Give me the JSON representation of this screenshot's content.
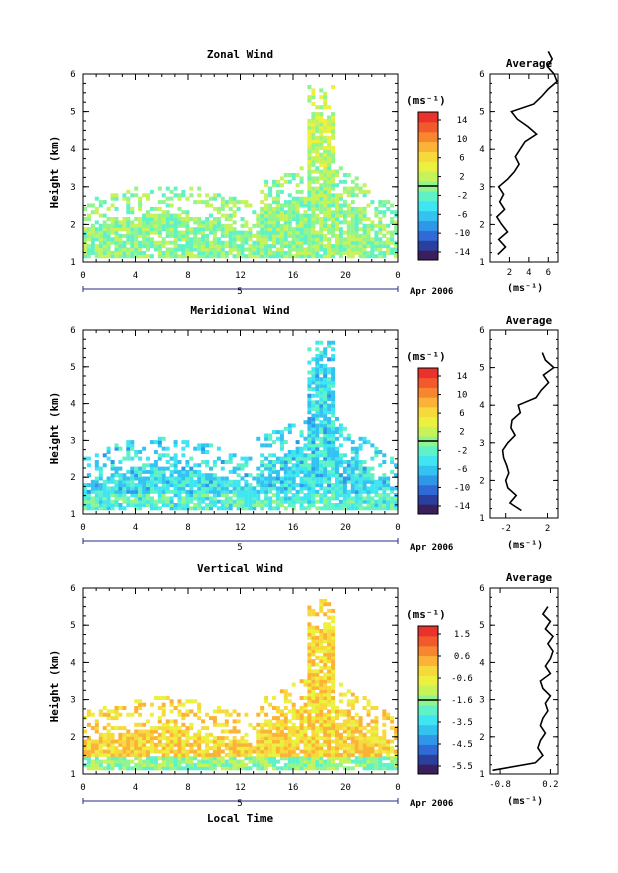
{
  "colors": {
    "scale": [
      "#3b1f5c",
      "#2a3f9e",
      "#2f6ad6",
      "#2f97e8",
      "#34c3f0",
      "#3fe6f2",
      "#5ff2c6",
      "#8ff58c",
      "#c6f25a",
      "#ecf03e",
      "#f8d93b",
      "#fbb237",
      "#f8862f",
      "#f25a2d",
      "#e8322b"
    ],
    "line": "#000000"
  },
  "x_ticks": [
    "0",
    "4",
    "8",
    "12",
    "16",
    "20",
    "0"
  ],
  "date_label": "Apr 2006",
  "day_label": "5",
  "xlabel": "Local Time",
  "units": "(ms⁻¹)",
  "chart_data": [
    {
      "type": "heatmap",
      "title": "Zonal Wind",
      "ylabel": "Height (km)",
      "y_ticks": [
        "1",
        "2",
        "3",
        "4",
        "5",
        "6"
      ],
      "ylim": [
        1,
        6
      ],
      "xlim": [
        0,
        24
      ],
      "colorbar_ticks": [
        "14",
        "10",
        "6",
        "2",
        "-2",
        "-6",
        "-10",
        "-14"
      ],
      "colorbar_range": [
        -16,
        16
      ],
      "average": {
        "title": "Average",
        "xticks": [
          "2",
          "4",
          "6"
        ],
        "xlim": [
          0,
          7
        ],
        "height": [
          1.2,
          1.4,
          1.6,
          1.8,
          2.0,
          2.2,
          2.4,
          2.6,
          2.8,
          3.0,
          3.2,
          3.4,
          3.6,
          3.8,
          4.0,
          4.2,
          4.4,
          4.6,
          4.8,
          5.0,
          5.2,
          5.4,
          5.6,
          5.8,
          6.0,
          6.2,
          6.4,
          6.6
        ],
        "value": [
          0.8,
          1.6,
          0.9,
          1.8,
          1.2,
          0.7,
          1.5,
          1.0,
          1.4,
          0.9,
          1.8,
          2.5,
          3.0,
          2.6,
          3.1,
          3.6,
          4.8,
          3.9,
          2.8,
          2.2,
          4.5,
          5.3,
          6.0,
          6.9,
          6.6,
          5.9,
          6.4,
          6.0
        ]
      }
    },
    {
      "type": "heatmap",
      "title": "Meridional Wind",
      "ylabel": "Height (km)",
      "y_ticks": [
        "1",
        "2",
        "3",
        "4",
        "5",
        "6"
      ],
      "ylim": [
        1,
        6
      ],
      "xlim": [
        0,
        24
      ],
      "colorbar_ticks": [
        "14",
        "10",
        "6",
        "2",
        "-2",
        "-6",
        "-10",
        "-14"
      ],
      "colorbar_range": [
        -16,
        16
      ],
      "average": {
        "title": "Average",
        "xticks": [
          "-2",
          "2"
        ],
        "xlim": [
          -3.5,
          3
        ],
        "height": [
          1.2,
          1.4,
          1.6,
          1.8,
          2.0,
          2.2,
          2.4,
          2.6,
          2.8,
          3.0,
          3.2,
          3.4,
          3.6,
          3.8,
          4.0,
          4.2,
          4.4,
          4.6,
          4.8,
          5.0,
          5.2,
          5.4
        ],
        "value": [
          -0.5,
          -1.6,
          -1.0,
          -1.8,
          -2.0,
          -1.7,
          -1.9,
          -2.2,
          -2.3,
          -1.8,
          -1.1,
          -1.5,
          -1.4,
          -0.6,
          -0.8,
          0.9,
          1.4,
          2.1,
          1.6,
          2.6,
          1.8,
          1.5
        ]
      }
    },
    {
      "type": "heatmap",
      "title": "Vertical Wind",
      "ylabel": "Height (km)",
      "y_ticks": [
        "1",
        "2",
        "3",
        "4",
        "5",
        "6"
      ],
      "ylim": [
        1,
        6
      ],
      "xlim": [
        0,
        24
      ],
      "colorbar_ticks": [
        "1.5",
        "0.6",
        "-0.6",
        "-1.6",
        "-3.5",
        "-4.5",
        "-5.5"
      ],
      "colorbar_range": [
        -6,
        2
      ],
      "average": {
        "title": "Average",
        "xticks": [
          "-0.8",
          "0.2"
        ],
        "xlim": [
          -1.0,
          0.35
        ],
        "height": [
          1.1,
          1.3,
          1.5,
          1.7,
          1.9,
          2.1,
          2.3,
          2.5,
          2.7,
          2.9,
          3.1,
          3.3,
          3.5,
          3.7,
          3.9,
          4.1,
          4.3,
          4.5,
          4.7,
          4.9,
          5.1,
          5.3,
          5.5
        ],
        "value": [
          -0.95,
          -0.1,
          0.05,
          -0.05,
          0.0,
          0.1,
          0.0,
          0.05,
          0.15,
          0.1,
          0.2,
          0.05,
          0.0,
          0.2,
          0.1,
          0.2,
          0.25,
          0.15,
          0.25,
          0.1,
          0.2,
          0.05,
          0.15
        ]
      }
    }
  ]
}
